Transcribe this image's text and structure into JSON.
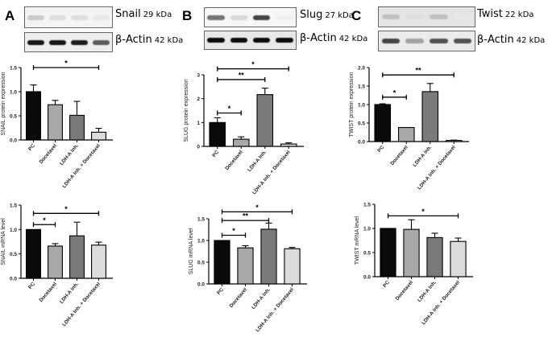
{
  "figure": {
    "groups": [
      "PC",
      "Docetaxel",
      "LDH-A Inh.",
      "LDH-A Inh. + Docetaxel"
    ],
    "bar_colors": [
      "#0a0a0a",
      "#a8a8a8",
      "#7a7a7a",
      "#dcdcdc"
    ]
  },
  "panels": [
    {
      "letter": "A",
      "blots": [
        {
          "protein": "Snail",
          "kda": "29 kDa",
          "bands": [
            0.18,
            0.1,
            0.1,
            0.06
          ],
          "bg": "#f4f4f4"
        },
        {
          "protein": "β-Actin",
          "kda": "42 kDa",
          "bands": [
            0.95,
            0.95,
            0.92,
            0.65
          ],
          "bg": "#eeeeee"
        }
      ]
    },
    {
      "letter": "B",
      "blots": [
        {
          "protein": "Slug",
          "kda": "27 kDa",
          "bands": [
            0.55,
            0.12,
            0.75,
            0.02
          ],
          "bg": "#f6f6f6"
        },
        {
          "protein": "β-Actin",
          "kda": "42 kDa",
          "bands": [
            1.0,
            1.0,
            1.0,
            1.0
          ],
          "bg": "#e8e8e8"
        }
      ]
    },
    {
      "letter": "C",
      "blots": [
        {
          "protein": "Twist",
          "kda": "22 kDa",
          "bands": [
            0.22,
            0.1,
            0.22,
            0.06
          ],
          "bg": "#e4e4e4"
        },
        {
          "protein": "β-Actin",
          "kda": "42 kDa",
          "bands": [
            0.75,
            0.35,
            0.7,
            0.7
          ],
          "bg": "#ebebeb"
        }
      ]
    }
  ],
  "chart_data": [
    {
      "id": "snail-protein",
      "type": "bar",
      "title": "",
      "ylabel": "SNAIL protein expression",
      "xlabel": "",
      "categories": [
        "PC",
        "Docetaxel",
        "LDH-A Inh.",
        "LDH-A Inh. + Docetaxel"
      ],
      "values": [
        1.0,
        0.73,
        0.51,
        0.16
      ],
      "errors": [
        0.14,
        0.09,
        0.29,
        0.08
      ],
      "ylim": [
        0,
        1.5
      ],
      "yticks": [
        "0.0",
        "0.5",
        "1.0",
        "1.5"
      ],
      "ytick_values": [
        0,
        0.5,
        1.0,
        1.5
      ],
      "significance": [
        {
          "from": 0,
          "to": 3,
          "label": "*",
          "y": 1.5
        }
      ]
    },
    {
      "id": "slug-protein",
      "type": "bar",
      "title": "",
      "ylabel": "SLUG protein expression",
      "xlabel": "",
      "categories": [
        "PC",
        "Docetaxel",
        "LDH-A Inh.",
        "LDH-A Inh. + Docetaxel"
      ],
      "values": [
        1.0,
        0.3,
        2.17,
        0.1
      ],
      "errors": [
        0.2,
        0.1,
        0.27,
        0.05
      ],
      "ylim": [
        0,
        3
      ],
      "yticks": [
        "0",
        "1",
        "2",
        "3"
      ],
      "ytick_values": [
        0,
        1,
        2,
        3
      ],
      "significance": [
        {
          "from": 0,
          "to": 3,
          "label": "*",
          "y": 3.25
        },
        {
          "from": 0,
          "to": 2,
          "label": "**",
          "y": 2.8
        },
        {
          "from": 0,
          "to": 1,
          "label": "*",
          "y": 1.4
        }
      ]
    },
    {
      "id": "twist-protein",
      "type": "bar",
      "title": "",
      "ylabel": "TWIST protein expression",
      "xlabel": "",
      "categories": [
        "PC",
        "Docetaxel",
        "LDH-A Inh.",
        "LDH-A Inh. + Docetaxel"
      ],
      "values": [
        1.0,
        0.38,
        1.35,
        0.03
      ],
      "errors": [
        0.02,
        0.0,
        0.22,
        0.01
      ],
      "ylim": [
        0,
        2.0
      ],
      "yticks": [
        "0.0",
        "0.5",
        "1.0",
        "1.5",
        "2.0"
      ],
      "ytick_values": [
        0,
        0.5,
        1.0,
        1.5,
        2.0
      ],
      "significance": [
        {
          "from": 0,
          "to": 3,
          "label": "**",
          "y": 1.8
        },
        {
          "from": 0,
          "to": 1,
          "label": "*",
          "y": 1.2
        }
      ]
    },
    {
      "id": "snail-mrna",
      "type": "bar",
      "title": "",
      "ylabel": "SNAIL mRNA level",
      "xlabel": "",
      "categories": [
        "PC",
        "Docetaxel",
        "LDH-A Inh.",
        "LDH-A Inh. + Docetaxel"
      ],
      "values": [
        1.0,
        0.66,
        0.87,
        0.68
      ],
      "errors": [
        0.0,
        0.05,
        0.28,
        0.06
      ],
      "ylim": [
        0,
        1.5
      ],
      "yticks": [
        "0.0",
        "0.5",
        "1.0",
        "1.5"
      ],
      "ytick_values": [
        0,
        0.5,
        1.0,
        1.5
      ],
      "significance": [
        {
          "from": 0,
          "to": 3,
          "label": "*",
          "y": 1.33
        },
        {
          "from": 0,
          "to": 1,
          "label": "*",
          "y": 1.1
        }
      ]
    },
    {
      "id": "slug-mrna",
      "type": "bar",
      "title": "",
      "ylabel": "SLUG mRNA level",
      "xlabel": "",
      "categories": [
        "PC",
        "Docetaxel",
        "LDH-A Inh.",
        "LDH-A Inh. + Docetaxel"
      ],
      "values": [
        1.0,
        0.83,
        1.26,
        0.81
      ],
      "errors": [
        0.0,
        0.05,
        0.14,
        0.03
      ],
      "ylim": [
        0,
        1.5
      ],
      "yticks": [
        "0.0",
        "0.5",
        "1.0",
        "1.5"
      ],
      "ytick_values": [
        0,
        0.5,
        1.0,
        1.5
      ],
      "significance": [
        {
          "from": 0,
          "to": 3,
          "label": "*",
          "y": 1.66
        },
        {
          "from": 0,
          "to": 2,
          "label": "**",
          "y": 1.46
        },
        {
          "from": 0,
          "to": 1,
          "label": "*",
          "y": 1.12
        }
      ]
    },
    {
      "id": "twist-mrna",
      "type": "bar",
      "title": "",
      "ylabel": "TWIST mRNA level",
      "xlabel": "",
      "categories": [
        "PC",
        "Docetaxel",
        "LDH-A Inh.",
        "LDH-A Inh. + Docetaxel"
      ],
      "values": [
        1.0,
        0.98,
        0.81,
        0.73
      ],
      "errors": [
        0.0,
        0.2,
        0.09,
        0.07
      ],
      "ylim": [
        0,
        1.5
      ],
      "yticks": [
        "0.0",
        "0.5",
        "1.0",
        "1.5"
      ],
      "ytick_values": [
        0,
        0.5,
        1.0,
        1.5
      ],
      "significance": [
        {
          "from": 0,
          "to": 3,
          "label": "*",
          "y": 1.26
        }
      ]
    }
  ]
}
